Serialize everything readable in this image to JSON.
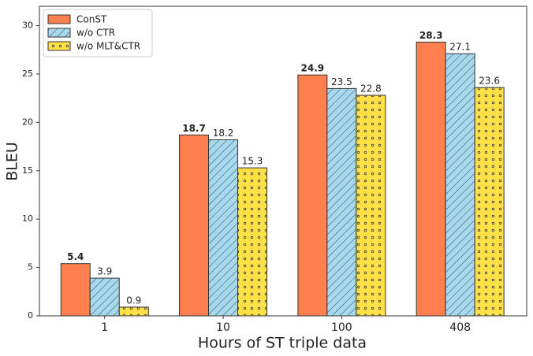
{
  "chart_data": {
    "type": "bar",
    "x_label": "Hours of ST triple data",
    "y_label": "BLEU",
    "categories": [
      "1",
      "10",
      "100",
      "408"
    ],
    "series": [
      {
        "name": "ConST",
        "color": "#ff7f4f",
        "pattern": "none",
        "bold_labels": true,
        "values": [
          5.4,
          18.7,
          24.9,
          28.3
        ]
      },
      {
        "name": "w/o CTR",
        "color": "#a7d8eb",
        "pattern": "hatch",
        "bold_labels": false,
        "values": [
          3.9,
          18.2,
          23.5,
          27.1
        ]
      },
      {
        "name": "w/o MLT&CTR",
        "color": "#ffe047",
        "pattern": "dots",
        "bold_labels": false,
        "values": [
          0.9,
          15.3,
          22.8,
          23.6
        ]
      }
    ],
    "ylim": [
      0,
      32
    ],
    "yticks": [
      0,
      5,
      10,
      15,
      20,
      25,
      30
    ],
    "grid": false,
    "legend": "upper-left"
  }
}
